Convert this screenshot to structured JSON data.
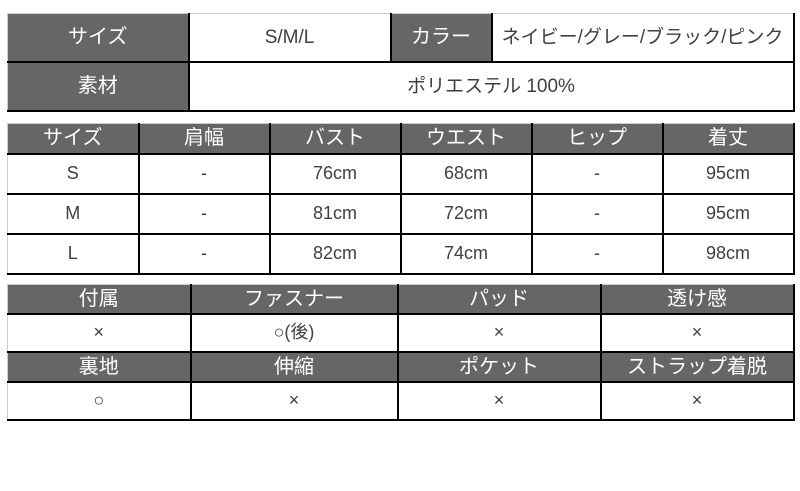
{
  "colors": {
    "header_bg": "#666666",
    "header_text": "#ffffff",
    "body_text": "#3f3f3f",
    "border_dark": "#000000",
    "border_light": "#cccccc",
    "page_bg": "#ffffff"
  },
  "spec_table": {
    "size_label": "サイズ",
    "size_value": "S/M/L",
    "color_label": "カラー",
    "color_value": "ネイビー/グレー/ブラック/ピンク",
    "material_label": "素材",
    "material_value": "ポリエステル 100%"
  },
  "measurements_table": {
    "headers": [
      "サイズ",
      "肩幅",
      "バスト",
      "ウエスト",
      "ヒップ",
      "着丈"
    ],
    "rows": [
      [
        "S",
        "-",
        "76cm",
        "68cm",
        "-",
        "95cm"
      ],
      [
        "M",
        "-",
        "81cm",
        "72cm",
        "-",
        "95cm"
      ],
      [
        "L",
        "-",
        "82cm",
        "74cm",
        "-",
        "98cm"
      ]
    ]
  },
  "features_table": {
    "group1": {
      "headers": [
        "付属",
        "ファスナー",
        "パッド",
        "透け感"
      ],
      "values": [
        "×",
        "○(後)",
        "×",
        "×"
      ]
    },
    "group2": {
      "headers": [
        "裏地",
        "伸縮",
        "ポケット",
        "ストラップ着脱"
      ],
      "values": [
        "○",
        "×",
        "×",
        "×"
      ]
    }
  }
}
